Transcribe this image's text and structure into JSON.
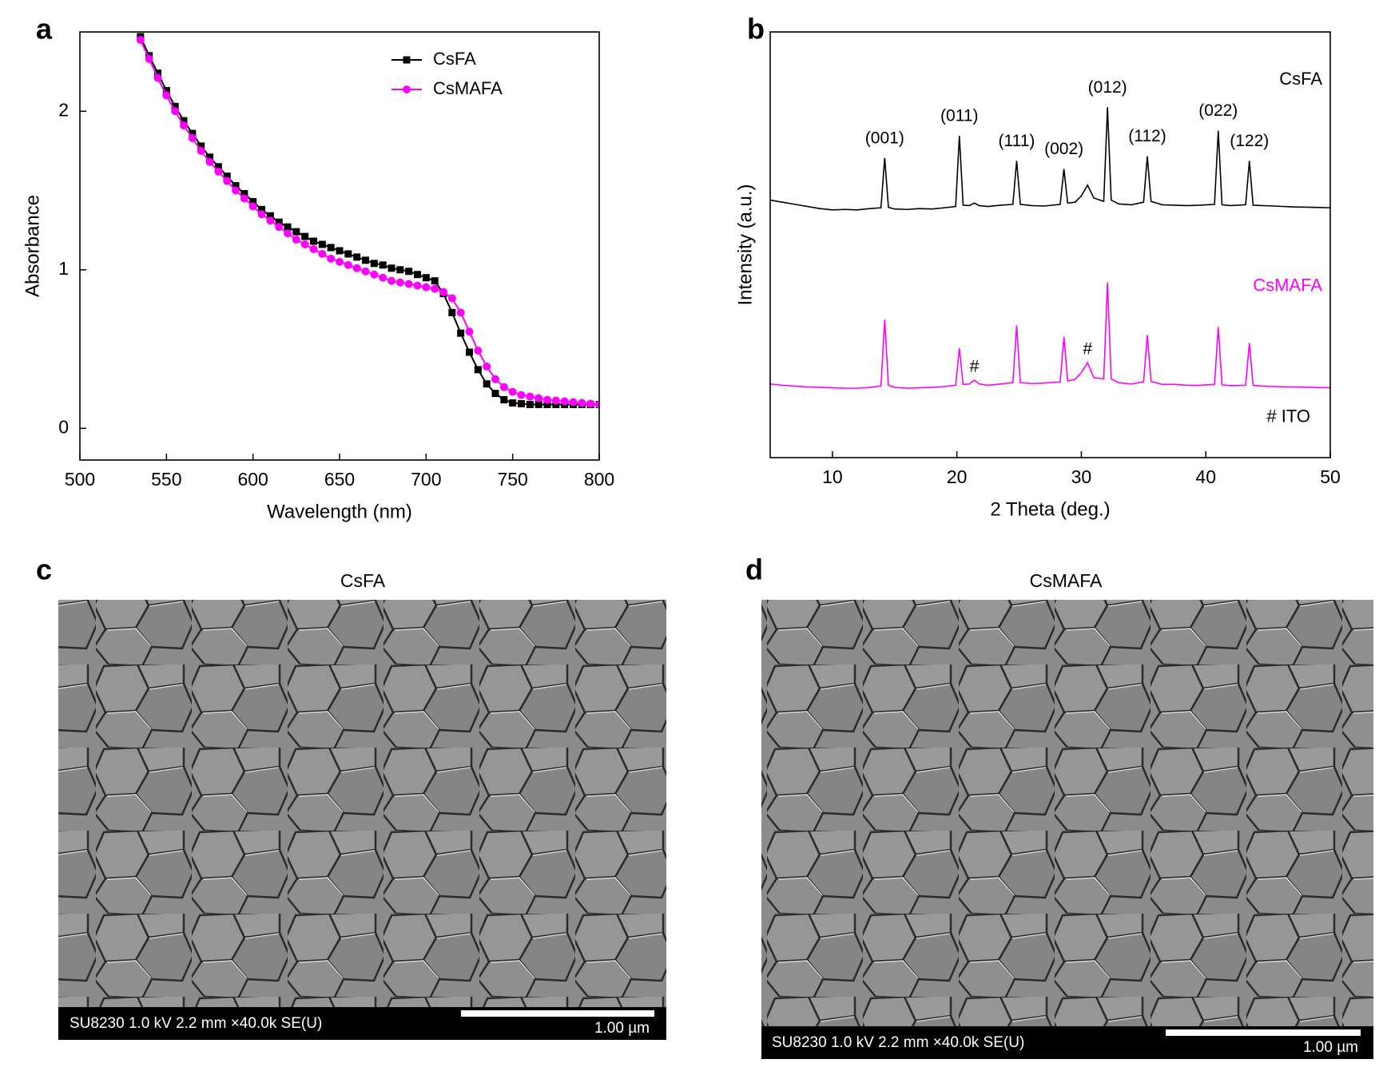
{
  "chart_data": [
    {
      "type": "line",
      "panel_label": "a",
      "xlabel": "Wavelength (nm)",
      "ylabel": "Absorbance",
      "x": [
        535,
        540,
        545,
        550,
        555,
        560,
        565,
        570,
        575,
        580,
        585,
        590,
        595,
        600,
        605,
        610,
        615,
        620,
        625,
        630,
        635,
        640,
        645,
        650,
        655,
        660,
        665,
        670,
        675,
        680,
        685,
        690,
        695,
        700,
        705,
        710,
        715,
        720,
        725,
        730,
        735,
        740,
        745,
        750,
        755,
        760,
        765,
        770,
        775,
        780,
        785,
        790,
        795,
        800
      ],
      "series": [
        {
          "name": "CsFA",
          "color": "#000000",
          "marker": "square",
          "values": [
            2.47,
            2.35,
            2.24,
            2.13,
            2.03,
            1.94,
            1.86,
            1.78,
            1.71,
            1.65,
            1.59,
            1.53,
            1.48,
            1.43,
            1.38,
            1.34,
            1.3,
            1.27,
            1.24,
            1.21,
            1.18,
            1.16,
            1.14,
            1.12,
            1.1,
            1.08,
            1.06,
            1.04,
            1.03,
            1.01,
            1.0,
            0.99,
            0.97,
            0.95,
            0.93,
            0.85,
            0.73,
            0.6,
            0.48,
            0.37,
            0.28,
            0.22,
            0.18,
            0.16,
            0.155,
            0.15,
            0.15,
            0.15,
            0.15,
            0.15,
            0.15,
            0.15,
            0.15,
            0.15
          ]
        },
        {
          "name": "CsMAFA",
          "color": "#ff00ff",
          "marker": "circle",
          "values": [
            2.45,
            2.33,
            2.21,
            2.1,
            2.0,
            1.91,
            1.83,
            1.75,
            1.68,
            1.62,
            1.56,
            1.5,
            1.45,
            1.4,
            1.35,
            1.31,
            1.27,
            1.23,
            1.19,
            1.16,
            1.13,
            1.1,
            1.07,
            1.05,
            1.03,
            1.01,
            0.99,
            0.97,
            0.95,
            0.93,
            0.92,
            0.91,
            0.9,
            0.89,
            0.88,
            0.86,
            0.82,
            0.73,
            0.61,
            0.49,
            0.39,
            0.31,
            0.26,
            0.23,
            0.21,
            0.2,
            0.19,
            0.18,
            0.175,
            0.17,
            0.165,
            0.16,
            0.155,
            0.15
          ]
        }
      ],
      "xlim": [
        500,
        800
      ],
      "xticks": [
        500,
        550,
        600,
        650,
        700,
        750,
        800
      ],
      "ylim": [
        -0.2,
        2.5
      ],
      "yticks": [
        0,
        1,
        2
      ],
      "legend": "upper right"
    },
    {
      "type": "line",
      "panel_label": "b",
      "xlabel": "2 Theta (deg.)",
      "ylabel": "Intensity (a.u.)",
      "x": [
        5,
        6,
        7,
        8,
        9,
        10,
        11,
        12,
        13,
        13.9,
        14.2,
        14.5,
        15,
        16,
        17,
        18,
        19,
        19.9,
        20.2,
        20.5,
        21,
        21.4,
        21.8,
        22.5,
        23.5,
        24.5,
        24.8,
        25.1,
        26,
        27,
        28.3,
        28.6,
        28.9,
        29.5,
        30,
        30.5,
        31,
        31.8,
        32.1,
        32.4,
        33,
        34,
        35,
        35.3,
        35.6,
        36.5,
        37.5,
        38.5,
        39.5,
        40.7,
        41,
        41.3,
        42,
        43.2,
        43.5,
        43.8,
        44.5,
        45.5,
        47,
        48.5,
        50
      ],
      "series": [
        {
          "name": "CsFA",
          "color": "#000000",
          "values": [
            60.5,
            60,
            59.5,
            59,
            58.5,
            58.2,
            58.3,
            58.2,
            58.5,
            58.7,
            70.4,
            58.8,
            58.4,
            58.3,
            58.5,
            58.4,
            58.7,
            59,
            75.6,
            59.3,
            59.2,
            59.8,
            59.2,
            59,
            59.3,
            59.5,
            69.7,
            59.5,
            59.2,
            59.1,
            59.5,
            67.8,
            59.8,
            60,
            61.5,
            64,
            61,
            60.2,
            82.3,
            60.5,
            59.6,
            59.4,
            60,
            70.8,
            60.2,
            59.4,
            59.3,
            59.2,
            59.3,
            59.5,
            76.8,
            59.4,
            59.2,
            59.4,
            69.7,
            59.3,
            59.2,
            59.1,
            58.9,
            58.8,
            58.7
          ]
        },
        {
          "name": "CsMAFA",
          "color": "#ff00ff",
          "values": [
            17.3,
            17,
            16.8,
            16.6,
            16.5,
            16.4,
            16.3,
            16.3,
            16.5,
            16.8,
            32.4,
            17,
            16.5,
            16.3,
            16.4,
            16.5,
            16.7,
            17,
            25.7,
            17.2,
            17.3,
            18.2,
            17.3,
            17,
            17.3,
            17.6,
            31.1,
            17.6,
            17.4,
            17.5,
            17.8,
            28.4,
            18,
            18.4,
            20,
            22.3,
            18.8,
            18.5,
            41.1,
            18.5,
            17.6,
            17.3,
            17.8,
            28.8,
            17.9,
            17.2,
            17.2,
            17,
            17,
            17.2,
            30.7,
            17.1,
            16.9,
            17,
            26.9,
            17,
            16.8,
            16.7,
            16.6,
            16.5,
            16.4
          ]
        }
      ],
      "peak_labels": [
        {
          "text": "(001)",
          "x": 14.2
        },
        {
          "text": "(011)",
          "x": 20.2
        },
        {
          "text": "(111)",
          "x": 24.8
        },
        {
          "text": "(002)",
          "x": 28.6
        },
        {
          "text": "(012)",
          "x": 32.1
        },
        {
          "text": "(112)",
          "x": 35.3
        },
        {
          "text": "(022)",
          "x": 41
        },
        {
          "text": "(122)",
          "x": 43.5
        }
      ],
      "impurity_marks": [
        {
          "text": "#",
          "x": 21.4
        },
        {
          "text": "#",
          "x": 30.5
        }
      ],
      "note": "# ITO",
      "xlim": [
        5,
        50
      ],
      "xticks": [
        10,
        20,
        30,
        40,
        50
      ],
      "ylim": [
        0,
        100
      ],
      "legend": "direct"
    }
  ],
  "images": [
    {
      "panel_label": "c",
      "title": "CsFA",
      "caption": "SU8230 1.0 kV 2.2 mm ×40.0k SE(U)",
      "scale": "1.00 µm"
    },
    {
      "panel_label": "d",
      "title": "CsMAFA",
      "caption": "SU8230 1.0 kV 2.2 mm ×40.0k SE(U)",
      "scale": "1.00 µm"
    }
  ]
}
